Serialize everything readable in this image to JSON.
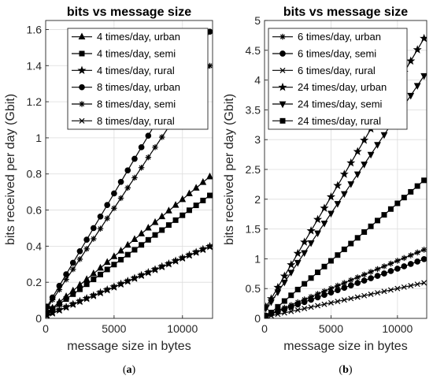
{
  "chart_data": [
    {
      "type": "line",
      "panel_label": "(a)",
      "title": "bits vs message size",
      "xlabel": "message size in bytes",
      "ylabel": "bits received per day (Gbit)",
      "xlim": [
        0,
        12200
      ],
      "ylim": [
        0,
        1.65
      ],
      "xticks": [
        0,
        5000,
        10000
      ],
      "xtick_labels": [
        "0",
        "5000",
        "10000"
      ],
      "yticks": [
        0,
        0.2,
        0.4,
        0.6,
        0.8,
        1,
        1.2,
        1.4,
        1.6
      ],
      "ytick_labels": [
        "0",
        "0.2",
        "0.4",
        "0.6",
        "0.8",
        "1",
        "1.2",
        "1.4",
        "1.6"
      ],
      "grid": true,
      "legend": "top-right",
      "x": [
        100,
        500,
        1000,
        1500,
        2000,
        2500,
        3000,
        3500,
        4000,
        4500,
        5000,
        5500,
        6000,
        6500,
        7000,
        7500,
        8000,
        8500,
        9000,
        9500,
        10000,
        10500,
        11000,
        11500,
        12000
      ],
      "series": [
        {
          "name": "4 times/day, urban",
          "marker": "triangle",
          "values": [
            0.032,
            0.058,
            0.09,
            0.121,
            0.153,
            0.185,
            0.216,
            0.248,
            0.279,
            0.311,
            0.343,
            0.374,
            0.406,
            0.438,
            0.469,
            0.501,
            0.532,
            0.564,
            0.596,
            0.627,
            0.659,
            0.691,
            0.722,
            0.754,
            0.785
          ]
        },
        {
          "name": "4 times/day, semi",
          "marker": "square",
          "values": [
            0.03,
            0.052,
            0.079,
            0.107,
            0.134,
            0.161,
            0.189,
            0.216,
            0.243,
            0.271,
            0.298,
            0.325,
            0.353,
            0.38,
            0.407,
            0.435,
            0.462,
            0.489,
            0.517,
            0.544,
            0.571,
            0.599,
            0.626,
            0.653,
            0.681
          ]
        },
        {
          "name": "4 times/day, rural",
          "marker": "star",
          "values": [
            0.016,
            0.03,
            0.046,
            0.062,
            0.078,
            0.094,
            0.11,
            0.126,
            0.142,
            0.158,
            0.174,
            0.19,
            0.206,
            0.222,
            0.238,
            0.254,
            0.27,
            0.286,
            0.302,
            0.318,
            0.334,
            0.35,
            0.366,
            0.382,
            0.398
          ]
        },
        {
          "name": "8 times/day, urban",
          "marker": "circle",
          "values": [
            0.065,
            0.116,
            0.18,
            0.244,
            0.308,
            0.372,
            0.436,
            0.5,
            0.564,
            0.628,
            0.692,
            0.756,
            0.82,
            0.884,
            0.948,
            1.012,
            1.076,
            1.14,
            1.204,
            1.268,
            1.332,
            1.396,
            1.46,
            1.524,
            1.588
          ]
        },
        {
          "name": "8 times/day, semi",
          "marker": "asterisk",
          "values": [
            0.055,
            0.103,
            0.159,
            0.216,
            0.272,
            0.328,
            0.385,
            0.441,
            0.497,
            0.554,
            0.61,
            0.666,
            0.723,
            0.779,
            0.835,
            0.892,
            0.948,
            1.004,
            1.061,
            1.117,
            1.173,
            1.23,
            1.286,
            1.342,
            1.399
          ]
        },
        {
          "name": "8 times/day, rural",
          "marker": "x",
          "values": [
            0.016,
            0.03,
            0.046,
            0.062,
            0.078,
            0.094,
            0.11,
            0.126,
            0.142,
            0.158,
            0.174,
            0.19,
            0.206,
            0.222,
            0.238,
            0.254,
            0.27,
            0.286,
            0.302,
            0.318,
            0.334,
            0.35,
            0.366,
            0.382,
            0.398
          ]
        }
      ]
    },
    {
      "type": "line",
      "panel_label": "(b)",
      "title": "bits vs message size",
      "xlabel": "message size in bytes",
      "ylabel": "bits received per day (Gbit)",
      "xlim": [
        0,
        12200
      ],
      "ylim": [
        0,
        5
      ],
      "xticks": [
        0,
        5000,
        10000
      ],
      "xtick_labels": [
        "0",
        "5000",
        "10000"
      ],
      "yticks": [
        0,
        0.5,
        1,
        1.5,
        2,
        2.5,
        3,
        3.5,
        4,
        4.5,
        5
      ],
      "ytick_labels": [
        "0",
        "0.5",
        "1",
        "1.5",
        "2",
        "2.5",
        "3",
        "3.5",
        "4",
        "4.5",
        "5"
      ],
      "grid": true,
      "legend": "top-left",
      "x": [
        100,
        500,
        1000,
        1500,
        2000,
        2500,
        3000,
        3500,
        4000,
        4500,
        5000,
        5500,
        6000,
        6500,
        7000,
        7500,
        8000,
        8500,
        9000,
        9500,
        10000,
        10500,
        11000,
        11500,
        12000
      ],
      "series": [
        {
          "name": "6 times/day, urban",
          "marker": "asterisk",
          "values": [
            0.05,
            0.085,
            0.131,
            0.178,
            0.224,
            0.271,
            0.317,
            0.363,
            0.41,
            0.456,
            0.503,
            0.549,
            0.595,
            0.642,
            0.688,
            0.735,
            0.781,
            0.827,
            0.874,
            0.92,
            0.967,
            1.013,
            1.059,
            1.106,
            1.152
          ]
        },
        {
          "name": "6 times/day, semi",
          "marker": "circle",
          "values": [
            0.045,
            0.074,
            0.114,
            0.154,
            0.194,
            0.234,
            0.274,
            0.314,
            0.354,
            0.394,
            0.434,
            0.474,
            0.514,
            0.554,
            0.594,
            0.634,
            0.674,
            0.714,
            0.754,
            0.794,
            0.834,
            0.874,
            0.914,
            0.954,
            0.994
          ]
        },
        {
          "name": "6 times/day, rural",
          "marker": "x",
          "values": [
            0.03,
            0.045,
            0.069,
            0.093,
            0.117,
            0.141,
            0.165,
            0.189,
            0.213,
            0.237,
            0.261,
            0.285,
            0.309,
            0.333,
            0.357,
            0.381,
            0.405,
            0.429,
            0.453,
            0.477,
            0.501,
            0.525,
            0.549,
            0.573,
            0.597
          ]
        },
        {
          "name": "24 times/day, urban",
          "marker": "star",
          "values": [
            0.195,
            0.33,
            0.52,
            0.71,
            0.9,
            1.09,
            1.28,
            1.47,
            1.66,
            1.85,
            2.04,
            2.23,
            2.42,
            2.61,
            2.8,
            2.99,
            3.18,
            3.37,
            3.56,
            3.75,
            3.94,
            4.13,
            4.32,
            4.51,
            4.7
          ]
        },
        {
          "name": "24 times/day, semi",
          "marker": "triangle-down",
          "values": [
            0.17,
            0.276,
            0.441,
            0.606,
            0.771,
            0.936,
            1.101,
            1.266,
            1.431,
            1.596,
            1.761,
            1.926,
            2.091,
            2.256,
            2.421,
            2.586,
            2.751,
            2.916,
            3.081,
            3.246,
            3.411,
            3.576,
            3.741,
            3.906,
            4.071
          ]
        },
        {
          "name": "24 times/day, rural",
          "marker": "square",
          "values": [
            0.035,
            0.098,
            0.194,
            0.291,
            0.387,
            0.484,
            0.58,
            0.677,
            0.773,
            0.87,
            0.966,
            1.063,
            1.159,
            1.256,
            1.352,
            1.449,
            1.545,
            1.642,
            1.738,
            1.835,
            1.931,
            2.028,
            2.124,
            2.221,
            2.317
          ]
        }
      ]
    }
  ]
}
